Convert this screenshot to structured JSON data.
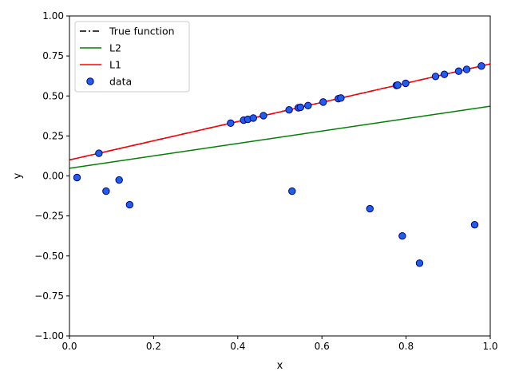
{
  "chart_data": {
    "type": "scatter",
    "title": "",
    "xlabel": "x",
    "ylabel": "y",
    "xlim": [
      0.0,
      1.0
    ],
    "ylim": [
      -1.0,
      1.0
    ],
    "xticks": [
      "0.0",
      "0.2",
      "0.4",
      "0.6",
      "0.8",
      "1.0"
    ],
    "yticks": [
      "-1.00",
      "-0.75",
      "-0.50",
      "-0.25",
      "0.00",
      "0.25",
      "0.50",
      "0.75",
      "1.00"
    ],
    "grid": false,
    "legend_position": "upper-left",
    "lines": [
      {
        "name": "True function",
        "x": [
          0.0,
          1.0
        ],
        "y": [
          0.1,
          0.7
        ],
        "color": "#000000",
        "style": "dashdot"
      },
      {
        "name": "L2",
        "x": [
          0.0,
          1.0
        ],
        "y": [
          0.048,
          0.436
        ],
        "color": "#008000",
        "style": "solid"
      },
      {
        "name": "L1",
        "x": [
          0.0,
          1.0
        ],
        "y": [
          0.1,
          0.7
        ],
        "color": "#ff0000",
        "style": "solid"
      }
    ],
    "scatter": {
      "name": "data",
      "color": "#1f5ee6",
      "edgecolor": "#00008b",
      "x": [
        0.018,
        0.07,
        0.087,
        0.118,
        0.143,
        0.383,
        0.414,
        0.424,
        0.437,
        0.461,
        0.522,
        0.529,
        0.544,
        0.549,
        0.567,
        0.603,
        0.639,
        0.645,
        0.714,
        0.777,
        0.78,
        0.791,
        0.799,
        0.832,
        0.87,
        0.891,
        0.925,
        0.944,
        0.963,
        0.979
      ],
      "y": [
        -0.01,
        0.142,
        -0.095,
        -0.025,
        -0.18,
        0.33,
        0.349,
        0.354,
        0.362,
        0.377,
        0.413,
        -0.095,
        0.426,
        0.429,
        0.44,
        0.462,
        0.483,
        0.487,
        -0.205,
        0.566,
        0.568,
        -0.375,
        0.579,
        -0.545,
        0.622,
        0.635,
        0.655,
        0.666,
        -0.305,
        0.687
      ]
    }
  }
}
